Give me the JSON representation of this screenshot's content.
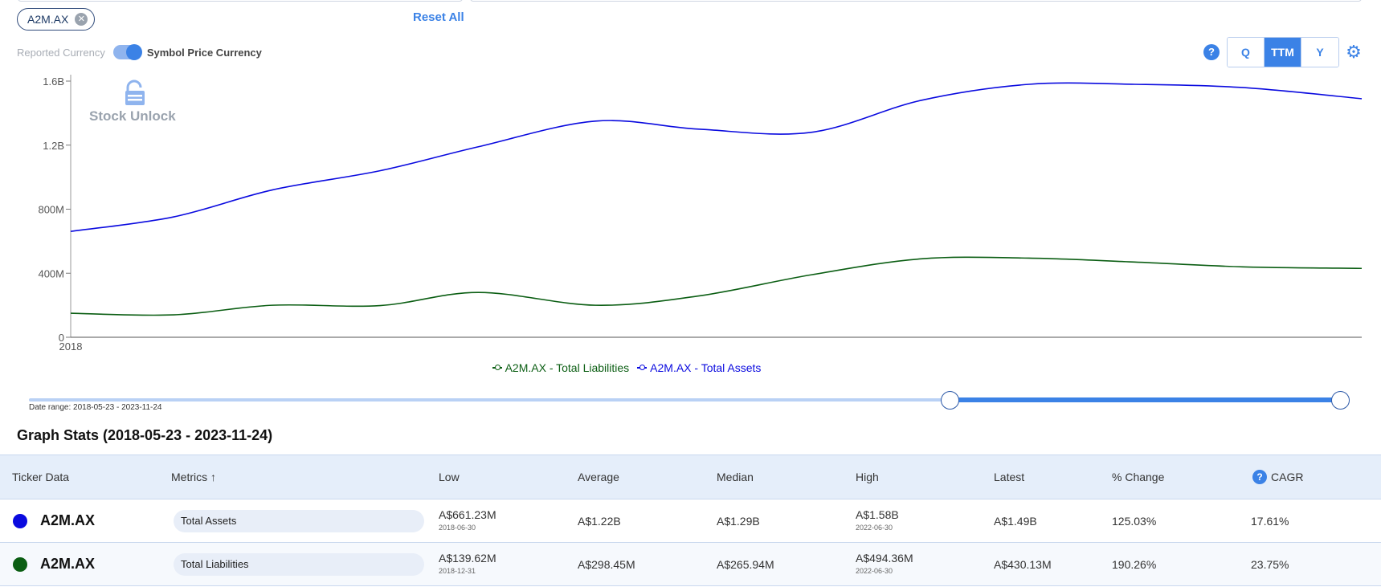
{
  "chip": {
    "label": "A2M.AX",
    "close_icon": "close-circle-icon"
  },
  "reset_all": "Reset All",
  "currency": {
    "reported": "Reported Currency",
    "symbol_price": "Symbol Price Currency",
    "toggle_on": true
  },
  "help_icon": "?",
  "periods": [
    {
      "label": "Q"
    },
    {
      "label": "TTM",
      "active": true
    },
    {
      "label": "Y"
    }
  ],
  "settings_icon": "gear-icon",
  "watermark": {
    "text": "Stock Unlock",
    "icon": "lock-icon"
  },
  "colors": {
    "accent": "#3b82e6",
    "assets": "#0a0adf",
    "liabilities": "#0b5e13"
  },
  "chart_data": {
    "type": "line",
    "x": [
      2018.39,
      2018.83,
      2019.25,
      2019.71,
      2020.13,
      2020.63,
      2021.07,
      2021.55,
      2022.02,
      2022.48,
      2022.93,
      2023.39,
      2023.9
    ],
    "series": [
      {
        "name": "A2M.AX - Total Assets",
        "color": "#0a0adf",
        "values": [
          661.23,
          752,
          920,
          1040,
          1190,
          1350,
          1300,
          1280,
          1480,
          1580,
          1580,
          1560,
          1490
        ]
      },
      {
        "name": "A2M.AX - Total Liabilities",
        "color": "#0b5e13",
        "values": [
          150,
          140,
          200,
          198,
          280,
          200,
          258,
          390,
          490,
          494.36,
          470,
          440,
          430.13
        ]
      }
    ],
    "y_ticks": [
      {
        "v": 0,
        "label": "0"
      },
      {
        "v": 400,
        "label": "400M"
      },
      {
        "v": 800,
        "label": "800M"
      },
      {
        "v": 1200,
        "label": "1.2B"
      },
      {
        "v": 1600,
        "label": "1.6B"
      }
    ],
    "x_ticks": [
      {
        "v": 2018.39,
        "label": "2018"
      }
    ],
    "ylim": [
      0,
      1600
    ],
    "y_unit": "millions AUD",
    "legend_placement": "bottom-center",
    "grid": false
  },
  "legend": {
    "liabilities": "A2M.AX - Total Liabilities",
    "assets": "A2M.AX - Total Assets"
  },
  "slider": {
    "start_fraction": 0.7,
    "end_fraction": 1.0
  },
  "date_range_text": "Date range: 2018-05-23 - 2023-11-24",
  "stats_title": "Graph Stats (2018-05-23 - 2023-11-24)",
  "table": {
    "headers": {
      "ticker": "Ticker Data",
      "metrics": "Metrics ↑",
      "low": "Low",
      "average": "Average",
      "median": "Median",
      "high": "High",
      "latest": "Latest",
      "change": "% Change",
      "cagr": "CAGR"
    },
    "rows": [
      {
        "color": "#0a0adf",
        "ticker": "A2M.AX",
        "metric": "Total Assets",
        "low": "A$661.23M",
        "low_date": "2018-06-30",
        "average": "A$1.22B",
        "median": "A$1.29B",
        "high": "A$1.58B",
        "high_date": "2022-06-30",
        "latest": "A$1.49B",
        "change": "125.03%",
        "cagr": "17.61%"
      },
      {
        "color": "#0b5e13",
        "ticker": "A2M.AX",
        "metric": "Total Liabilities",
        "low": "A$139.62M",
        "low_date": "2018-12-31",
        "average": "A$298.45M",
        "median": "A$265.94M",
        "high": "A$494.36M",
        "high_date": "2022-06-30",
        "latest": "A$430.13M",
        "change": "190.26%",
        "cagr": "23.75%"
      }
    ]
  }
}
